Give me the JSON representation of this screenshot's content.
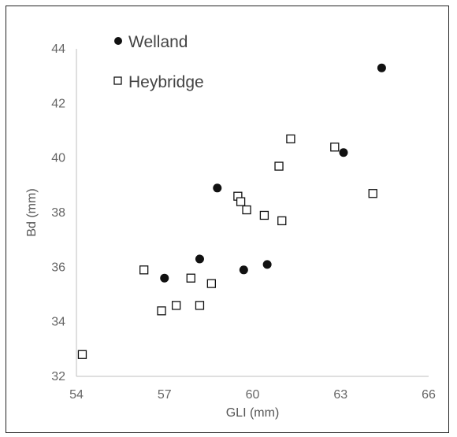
{
  "chart_data": {
    "type": "scatter",
    "title": "",
    "xlabel": "GLI (mm)",
    "ylabel": "Bd (mm)",
    "xlim": [
      54,
      66
    ],
    "ylim": [
      32,
      44
    ],
    "xticks": [
      "54",
      "57",
      "60",
      "63",
      "66"
    ],
    "yticks": [
      "32",
      "34",
      "36",
      "38",
      "40",
      "42",
      "44"
    ],
    "grid": false,
    "legend_position": "top-left",
    "series": [
      {
        "name": "Welland",
        "marker": "filled-circle",
        "color": "#111111",
        "points": [
          {
            "x": 57.0,
            "y": 35.6
          },
          {
            "x": 58.2,
            "y": 36.3
          },
          {
            "x": 58.8,
            "y": 38.9
          },
          {
            "x": 59.7,
            "y": 35.9
          },
          {
            "x": 60.5,
            "y": 36.1
          },
          {
            "x": 63.1,
            "y": 40.2
          },
          {
            "x": 64.4,
            "y": 43.3
          }
        ]
      },
      {
        "name": "Heybridge",
        "marker": "open-square",
        "color": "#111111",
        "points": [
          {
            "x": 54.2,
            "y": 32.8
          },
          {
            "x": 56.3,
            "y": 35.9
          },
          {
            "x": 56.9,
            "y": 34.4
          },
          {
            "x": 57.4,
            "y": 34.6
          },
          {
            "x": 57.9,
            "y": 35.6
          },
          {
            "x": 58.2,
            "y": 34.6
          },
          {
            "x": 58.6,
            "y": 35.4
          },
          {
            "x": 59.5,
            "y": 38.6
          },
          {
            "x": 59.6,
            "y": 38.4
          },
          {
            "x": 59.8,
            "y": 38.1
          },
          {
            "x": 60.4,
            "y": 37.9
          },
          {
            "x": 60.9,
            "y": 39.7
          },
          {
            "x": 61.0,
            "y": 37.7
          },
          {
            "x": 61.3,
            "y": 40.7
          },
          {
            "x": 62.8,
            "y": 40.4
          },
          {
            "x": 64.1,
            "y": 38.7
          }
        ]
      }
    ]
  }
}
